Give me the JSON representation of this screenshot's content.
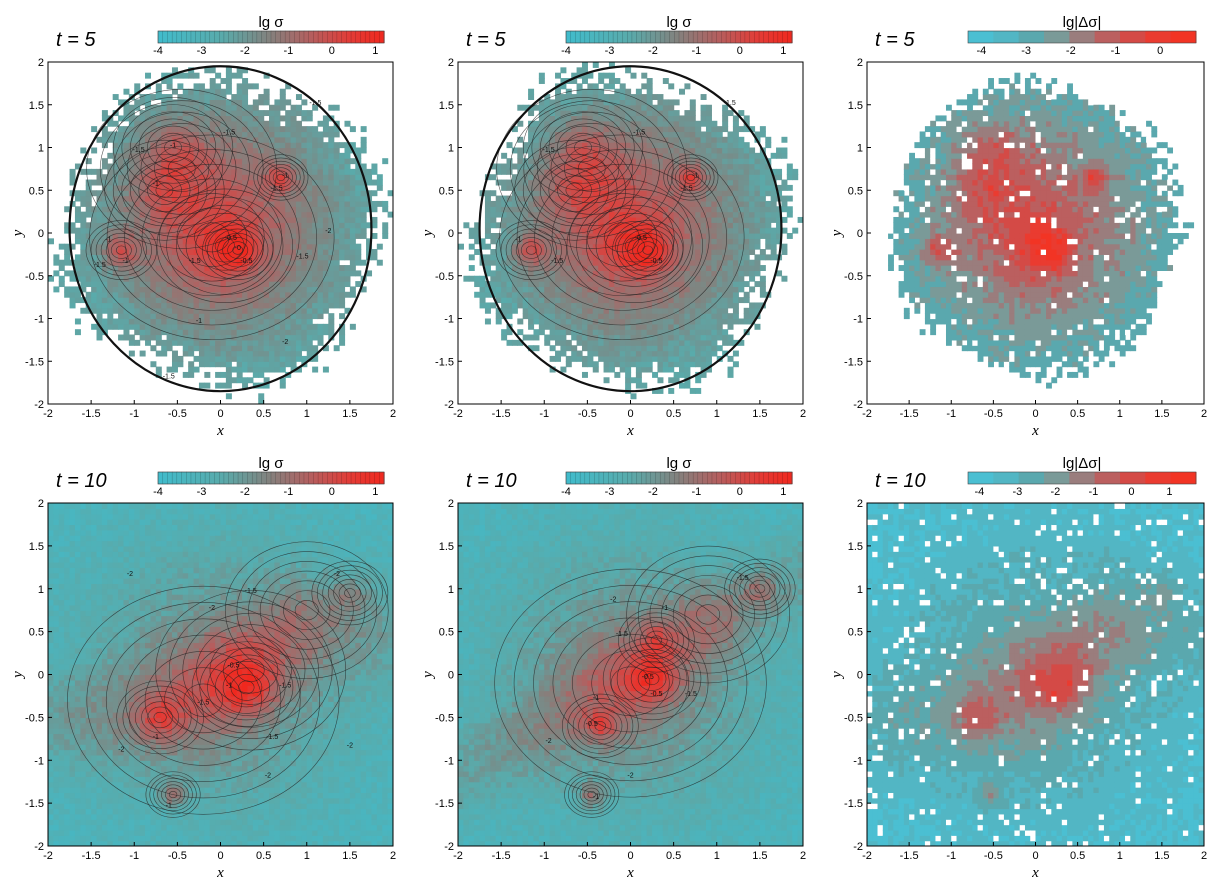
{
  "chart_data": [
    {
      "type": "heatmap",
      "time_label": "t = 5",
      "colorbar": {
        "title": "lg σ",
        "ticks": [
          -4,
          -3,
          -2,
          -1,
          0,
          1
        ],
        "range": [
          -4,
          1.2
        ],
        "style": "gradient"
      },
      "xlabel": "x",
      "ylabel": "y",
      "xlim": [
        -2,
        2
      ],
      "ylim": [
        -2,
        2
      ],
      "xticks": [
        "-2",
        "-1.5",
        "-1",
        "-0.5",
        "0",
        "0.5",
        "1",
        "1.5",
        "2"
      ],
      "yticks": [
        "-2",
        "-1.5",
        "-1",
        "-0.5",
        "0",
        "0.5",
        "1",
        "1.5",
        "2"
      ],
      "contour_labels": [
        {
          "x": -0.55,
          "y": 1.0,
          "text": "-1"
        },
        {
          "x": -0.95,
          "y": 0.95,
          "text": "-1.5"
        },
        {
          "x": -0.75,
          "y": 0.55,
          "text": "-1"
        },
        {
          "x": 0.1,
          "y": 1.15,
          "text": "-1.5"
        },
        {
          "x": 0.65,
          "y": 0.5,
          "text": "-1.5"
        },
        {
          "x": 0.75,
          "y": 0.65,
          "text": "-1"
        },
        {
          "x": -1.3,
          "y": -0.1,
          "text": "-1"
        },
        {
          "x": -1.1,
          "y": -0.35,
          "text": "-1"
        },
        {
          "x": -1.4,
          "y": -0.4,
          "text": "-1.5"
        },
        {
          "x": 0.12,
          "y": -0.08,
          "text": "-0.5"
        },
        {
          "x": 0.2,
          "y": -0.2,
          "text": "-0"
        },
        {
          "x": 0.3,
          "y": -0.35,
          "text": "-0.5"
        },
        {
          "x": -0.3,
          "y": -0.35,
          "text": "-1.5"
        },
        {
          "x": 0.95,
          "y": -0.3,
          "text": "-1.5"
        },
        {
          "x": -0.25,
          "y": -1.05,
          "text": "-1"
        },
        {
          "x": -0.6,
          "y": -1.7,
          "text": "-1.5"
        },
        {
          "x": 0.75,
          "y": -1.3,
          "text": "-2"
        },
        {
          "x": 1.1,
          "y": 1.5,
          "text": "-1.5"
        },
        {
          "x": 1.25,
          "y": 0.0,
          "text": "-2"
        }
      ]
    },
    {
      "type": "heatmap",
      "time_label": "t = 5",
      "colorbar": {
        "title": "lg σ",
        "ticks": [
          -4,
          -3,
          -2,
          -1,
          0,
          1
        ],
        "range": [
          -4,
          1.2
        ],
        "style": "gradient"
      },
      "xlabel": "x",
      "ylabel": "y",
      "xlim": [
        -2,
        2
      ],
      "ylim": [
        -2,
        2
      ],
      "xticks": [
        "-2",
        "-1.5",
        "-1",
        "-0.5",
        "0",
        "0.5",
        "1",
        "1.5",
        "2"
      ],
      "yticks": [
        "-2",
        "-1.5",
        "-1",
        "-0.5",
        "0",
        "0.5",
        "1",
        "1.5",
        "2"
      ],
      "contour_labels": [
        {
          "x": -0.95,
          "y": 0.95,
          "text": "-1.5"
        },
        {
          "x": 0.1,
          "y": 1.15,
          "text": "-1.5"
        },
        {
          "x": 0.75,
          "y": 0.65,
          "text": "-1"
        },
        {
          "x": 0.65,
          "y": 0.5,
          "text": "-1.5"
        },
        {
          "x": -1.3,
          "y": -0.1,
          "text": "-1"
        },
        {
          "x": -0.85,
          "y": -0.35,
          "text": "-1.5"
        },
        {
          "x": 0.12,
          "y": -0.08,
          "text": "-0.5"
        },
        {
          "x": 0.3,
          "y": -0.35,
          "text": "-0.5"
        },
        {
          "x": 1.15,
          "y": 1.5,
          "text": "-1.5"
        }
      ]
    },
    {
      "type": "heatmap",
      "time_label": "t = 5",
      "colorbar": {
        "title": "lg|Δσ|",
        "ticks": [
          -4,
          -3,
          -2,
          -1,
          0
        ],
        "range": [
          -4.3,
          0.8
        ],
        "style": "stepped"
      },
      "xlabel": "x",
      "ylabel": "y",
      "xlim": [
        -2,
        2
      ],
      "ylim": [
        -2,
        2
      ],
      "xticks": [
        "-2",
        "-1.5",
        "-1",
        "-0.5",
        "0",
        "0.5",
        "1",
        "1.5",
        "2"
      ],
      "yticks": [
        "-2",
        "-1.5",
        "-1",
        "-0.5",
        "0",
        "0.5",
        "1",
        "1.5",
        "2"
      ],
      "contour_labels": []
    },
    {
      "type": "heatmap",
      "time_label": "t = 10",
      "colorbar": {
        "title": "lg σ",
        "ticks": [
          -4,
          -3,
          -2,
          -1,
          0,
          1
        ],
        "range": [
          -4,
          1.2
        ],
        "style": "gradient"
      },
      "xlabel": "x",
      "ylabel": "y",
      "xlim": [
        -2,
        2
      ],
      "ylim": [
        -2,
        2
      ],
      "xticks": [
        "-2",
        "-1.5",
        "-1",
        "-0.5",
        "0",
        "0.5",
        "1",
        "1.5",
        "2"
      ],
      "yticks": [
        "-2",
        "-1.5",
        "-1",
        "-0.5",
        "0",
        "0.5",
        "1",
        "1.5",
        "2"
      ],
      "contour_labels": [
        {
          "x": -1.05,
          "y": 1.15,
          "text": "-2"
        },
        {
          "x": -0.1,
          "y": 0.75,
          "text": "-2"
        },
        {
          "x": 0.35,
          "y": 0.95,
          "text": "-1.5"
        },
        {
          "x": 1.35,
          "y": 1.15,
          "text": "-2"
        },
        {
          "x": 0.15,
          "y": 0.08,
          "text": "-0.5"
        },
        {
          "x": 0.1,
          "y": -0.15,
          "text": "-1"
        },
        {
          "x": 0.75,
          "y": -0.15,
          "text": "-1.5"
        },
        {
          "x": -0.2,
          "y": -0.35,
          "text": "-1.5"
        },
        {
          "x": -0.75,
          "y": -0.75,
          "text": "-1"
        },
        {
          "x": -1.15,
          "y": -0.9,
          "text": "-2"
        },
        {
          "x": 0.6,
          "y": -0.75,
          "text": "-1.5"
        },
        {
          "x": -0.6,
          "y": -1.55,
          "text": "-1"
        },
        {
          "x": 0.55,
          "y": -1.2,
          "text": "-2"
        },
        {
          "x": 1.5,
          "y": -0.85,
          "text": "-2"
        }
      ]
    },
    {
      "type": "heatmap",
      "time_label": "t = 10",
      "colorbar": {
        "title": "lg σ",
        "ticks": [
          -4,
          -3,
          -2,
          -1,
          0,
          1
        ],
        "range": [
          -4,
          1.2
        ],
        "style": "gradient"
      },
      "xlabel": "x",
      "ylabel": "y",
      "xlim": [
        -2,
        2
      ],
      "ylim": [
        -2,
        2
      ],
      "xticks": [
        "-2",
        "-1.5",
        "-1",
        "-0.5",
        "0",
        "0.5",
        "1",
        "1.5",
        "2"
      ],
      "yticks": [
        "-2",
        "-1.5",
        "-1",
        "-0.5",
        "0",
        "0.5",
        "1",
        "1.5",
        "2"
      ],
      "contour_labels": [
        {
          "x": -0.2,
          "y": 0.85,
          "text": "-2"
        },
        {
          "x": 0.4,
          "y": 0.75,
          "text": "-1"
        },
        {
          "x": 1.3,
          "y": 1.1,
          "text": "-1.5"
        },
        {
          "x": -0.1,
          "y": 0.45,
          "text": "-1.5"
        },
        {
          "x": 0.2,
          "y": -0.05,
          "text": "-0.5"
        },
        {
          "x": 0.3,
          "y": -0.25,
          "text": "-0.5"
        },
        {
          "x": -0.4,
          "y": -0.3,
          "text": "-1"
        },
        {
          "x": 0.7,
          "y": -0.25,
          "text": "-1.5"
        },
        {
          "x": -0.45,
          "y": -0.6,
          "text": "-0.5"
        },
        {
          "x": -0.95,
          "y": -0.8,
          "text": "-2"
        },
        {
          "x": -0.4,
          "y": -1.45,
          "text": "-1"
        },
        {
          "x": 0.0,
          "y": -1.2,
          "text": "-2"
        }
      ]
    },
    {
      "type": "heatmap",
      "time_label": "t = 10",
      "colorbar": {
        "title": "lg|Δσ|",
        "ticks": [
          -4,
          -3,
          -2,
          -1,
          0,
          1
        ],
        "range": [
          -4.3,
          1.7
        ],
        "style": "stepped"
      },
      "xlabel": "x",
      "ylabel": "y",
      "xlim": [
        -2,
        2
      ],
      "ylim": [
        -2,
        2
      ],
      "xticks": [
        "-2",
        "-1.5",
        "-1",
        "-0.5",
        "0",
        "0.5",
        "1",
        "1.5",
        "2"
      ],
      "yticks": [
        "-2",
        "-1.5",
        "-1",
        "-0.5",
        "0",
        "0.5",
        "1",
        "1.5",
        "2"
      ],
      "contour_labels": []
    }
  ]
}
